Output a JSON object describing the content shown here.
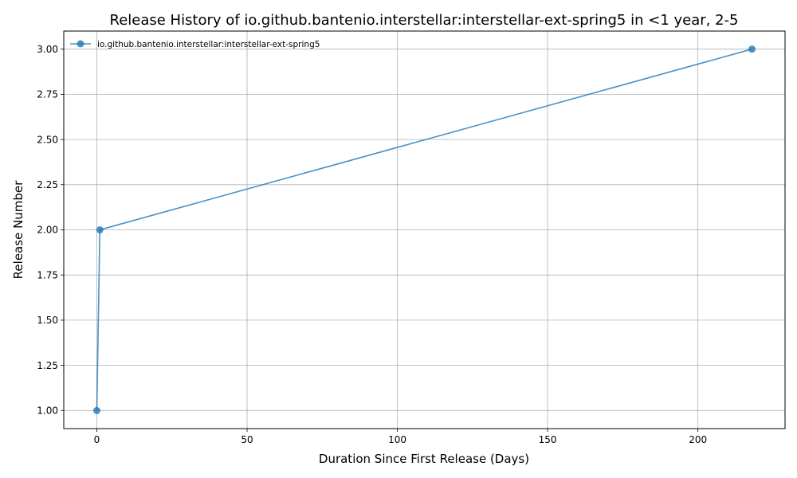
{
  "chart_data": {
    "type": "line",
    "title": "Release History of io.github.bantenio.interstellar:interstellar-ext-spring5 in <1 year, 2-5",
    "xlabel": "Duration Since First Release (Days)",
    "ylabel": "Release Number",
    "xlim": [
      -11,
      229
    ],
    "ylim": [
      0.9,
      3.1
    ],
    "xticks": [
      0,
      50,
      100,
      150,
      200
    ],
    "xtick_labels": [
      "0",
      "50",
      "100",
      "150",
      "200"
    ],
    "yticks": [
      1.0,
      1.25,
      1.5,
      1.75,
      2.0,
      2.25,
      2.5,
      2.75,
      3.0
    ],
    "ytick_labels": [
      "1.00",
      "1.25",
      "1.50",
      "1.75",
      "2.00",
      "2.25",
      "2.50",
      "2.75",
      "3.00"
    ],
    "grid": true,
    "legend_position": "top-left",
    "series": [
      {
        "name": "io.github.bantenio.interstellar:interstellar-ext-spring5",
        "color": "#1f77b4",
        "marker": "circle",
        "x": [
          0,
          1,
          218
        ],
        "y": [
          1,
          2,
          3
        ]
      }
    ]
  }
}
